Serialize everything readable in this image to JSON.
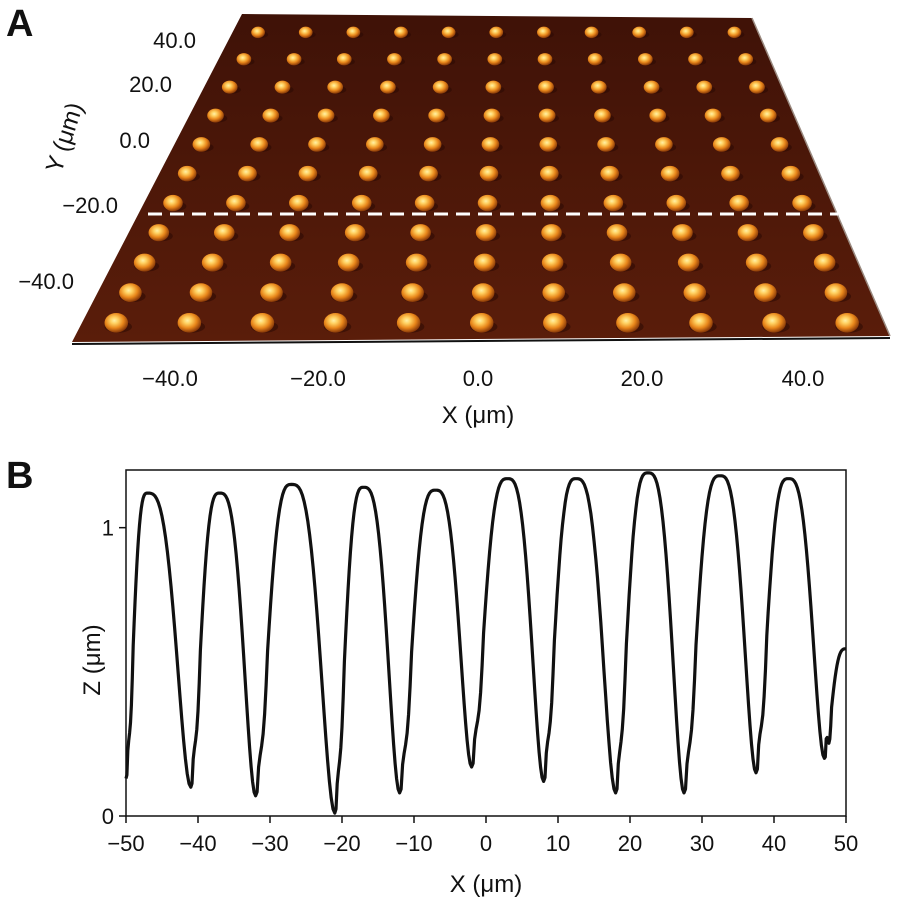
{
  "chart_data": [
    {
      "panel": "A",
      "type": "heatmap",
      "xlabel": "X (μm)",
      "ylabel": "Y (μm)",
      "x_ticks": [
        "−40.0",
        "−20.0",
        "0.0",
        "20.0",
        "40.0"
      ],
      "y_ticks": [
        "40.0",
        "20.0",
        "0.0",
        "−20.0",
        "−40.0"
      ],
      "xlim": [
        -50,
        50
      ],
      "ylim": [
        -50,
        50
      ],
      "rows": 11,
      "cols": 11,
      "pitch": 10,
      "profile_line_y": -20.0,
      "colors": {
        "substrate": "#4a1508",
        "bump_core": "#ffe07a",
        "bump_mid": "#f0951a",
        "bump_edge": "#8a3a08",
        "profile_line": "#ffffff"
      }
    },
    {
      "panel": "B",
      "type": "line",
      "xlabel": "X (μm)",
      "ylabel": "Z (μm)",
      "xlim": [
        -50,
        50
      ],
      "ylim": [
        0,
        1.2
      ],
      "x_ticks": [
        "−50",
        "−40",
        "−30",
        "−20",
        "−10",
        "0",
        "10",
        "20",
        "30",
        "40",
        "50"
      ],
      "y_ticks": [
        "0",
        "1"
      ],
      "line_color": "#111111",
      "peaks": [
        {
          "x": -47,
          "z": 1.12
        },
        {
          "x": -37,
          "z": 1.12
        },
        {
          "x": -27,
          "z": 1.15
        },
        {
          "x": -17,
          "z": 1.14
        },
        {
          "x": -7,
          "z": 1.13
        },
        {
          "x": 3,
          "z": 1.17
        },
        {
          "x": 12.5,
          "z": 1.17
        },
        {
          "x": 22.5,
          "z": 1.19
        },
        {
          "x": 32.5,
          "z": 1.18
        },
        {
          "x": 42,
          "z": 1.17
        }
      ],
      "valleys": [
        {
          "x": -50,
          "z": 0.13
        },
        {
          "x": -41,
          "z": 0.1
        },
        {
          "x": -32,
          "z": 0.07
        },
        {
          "x": -21,
          "z": 0.01
        },
        {
          "x": -12,
          "z": 0.08
        },
        {
          "x": -2,
          "z": 0.17
        },
        {
          "x": 8,
          "z": 0.12
        },
        {
          "x": 18,
          "z": 0.08
        },
        {
          "x": 27.5,
          "z": 0.08
        },
        {
          "x": 37.5,
          "z": 0.15
        },
        {
          "x": 47,
          "z": 0.2
        },
        {
          "x": 50,
          "z": 0.58
        }
      ]
    }
  ],
  "panels": {
    "a_label": "A",
    "b_label": "B"
  }
}
